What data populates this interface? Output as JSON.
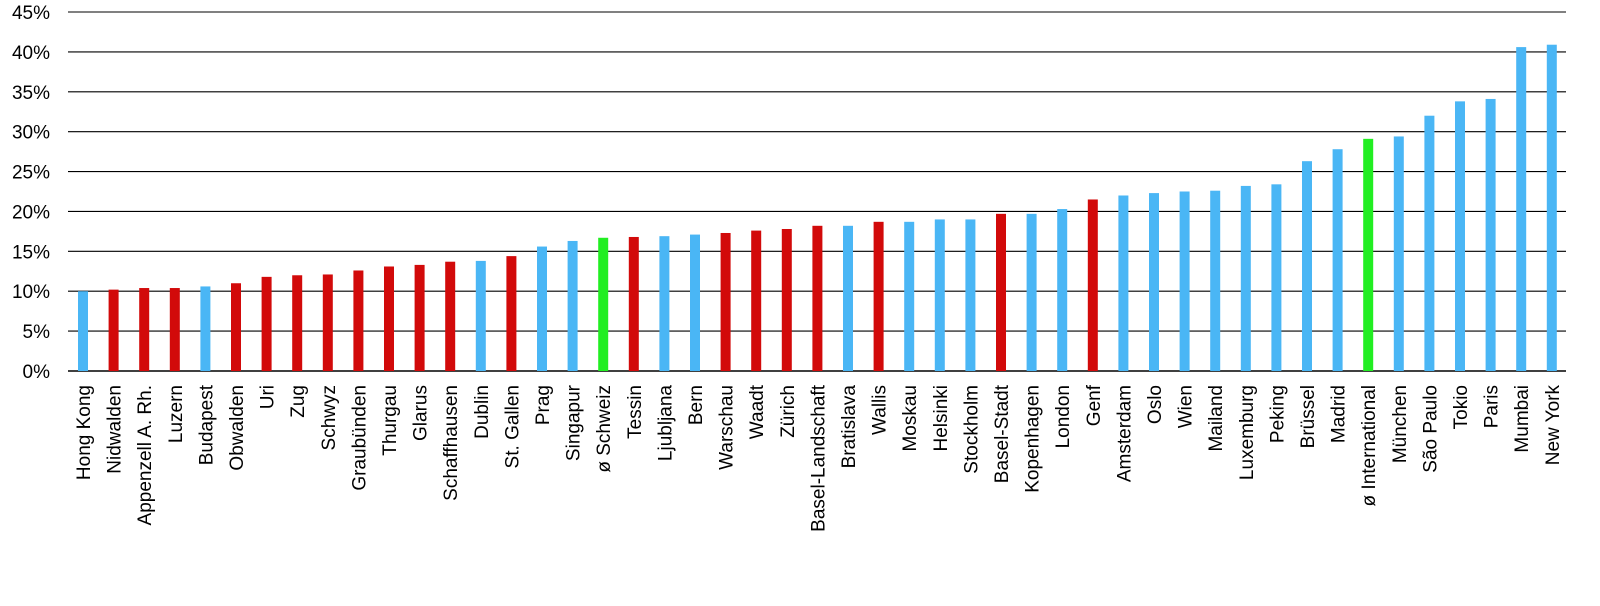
{
  "colors": {
    "international": "#4ab6f5",
    "swiss": "#d20a0a",
    "average": "#22ee22",
    "grid": "#000000"
  },
  "chart_data": {
    "type": "bar",
    "title": "",
    "xlabel": "",
    "ylabel": "",
    "ylim": [
      0,
      45
    ],
    "y_ticks": [
      "0%",
      "5%",
      "10%",
      "15%",
      "20%",
      "25%",
      "30%",
      "35%",
      "40%",
      "45%"
    ],
    "grid": "horizontal",
    "categories": [
      "Hong Kong",
      "Nidwalden",
      "Appenzell A. Rh.",
      "Luzern",
      "Budapest",
      "Obwalden",
      "Uri",
      "Zug",
      "Schwyz",
      "Graubünden",
      "Thurgau",
      "Glarus",
      "Schaffhausen",
      "Dublin",
      "St. Gallen",
      "Prag",
      "Singapur",
      "ø Schweiz",
      "Tessin",
      "Ljubljana",
      "Bern",
      "Warschau",
      "Waadt",
      "Zürich",
      "Basel-Landschaft",
      "Bratislava",
      "Wallis",
      "Moskau",
      "Helsinki",
      "Stockholm",
      "Basel-Stadt",
      "Kopenhagen",
      "London",
      "Genf",
      "Amsterdam",
      "Oslo",
      "Wien",
      "Mailand",
      "Luxemburg",
      "Peking",
      "Brüssel",
      "Madrid",
      "ø International",
      "München",
      "São Paulo",
      "Tokio",
      "Paris",
      "Mumbai",
      "New York"
    ],
    "values": [
      10.0,
      10.2,
      10.4,
      10.4,
      10.6,
      11.0,
      11.8,
      12.0,
      12.1,
      12.6,
      13.1,
      13.3,
      13.7,
      13.8,
      14.4,
      15.6,
      16.3,
      16.7,
      16.8,
      16.9,
      17.1,
      17.3,
      17.6,
      17.8,
      18.2,
      18.2,
      18.7,
      18.7,
      19.0,
      19.0,
      19.7,
      19.7,
      20.3,
      21.5,
      22.0,
      22.3,
      22.5,
      22.6,
      23.2,
      23.4,
      26.3,
      27.8,
      29.1,
      29.4,
      32.0,
      33.8,
      34.1,
      40.6,
      40.9
    ],
    "groups": [
      "international",
      "swiss",
      "swiss",
      "swiss",
      "international",
      "swiss",
      "swiss",
      "swiss",
      "swiss",
      "swiss",
      "swiss",
      "swiss",
      "swiss",
      "international",
      "swiss",
      "international",
      "international",
      "average",
      "swiss",
      "international",
      "international",
      "swiss",
      "swiss",
      "swiss",
      "swiss",
      "international",
      "swiss",
      "international",
      "international",
      "international",
      "swiss",
      "international",
      "international",
      "swiss",
      "international",
      "international",
      "international",
      "international",
      "international",
      "international",
      "international",
      "international",
      "average",
      "international",
      "international",
      "international",
      "international",
      "international",
      "international"
    ]
  }
}
